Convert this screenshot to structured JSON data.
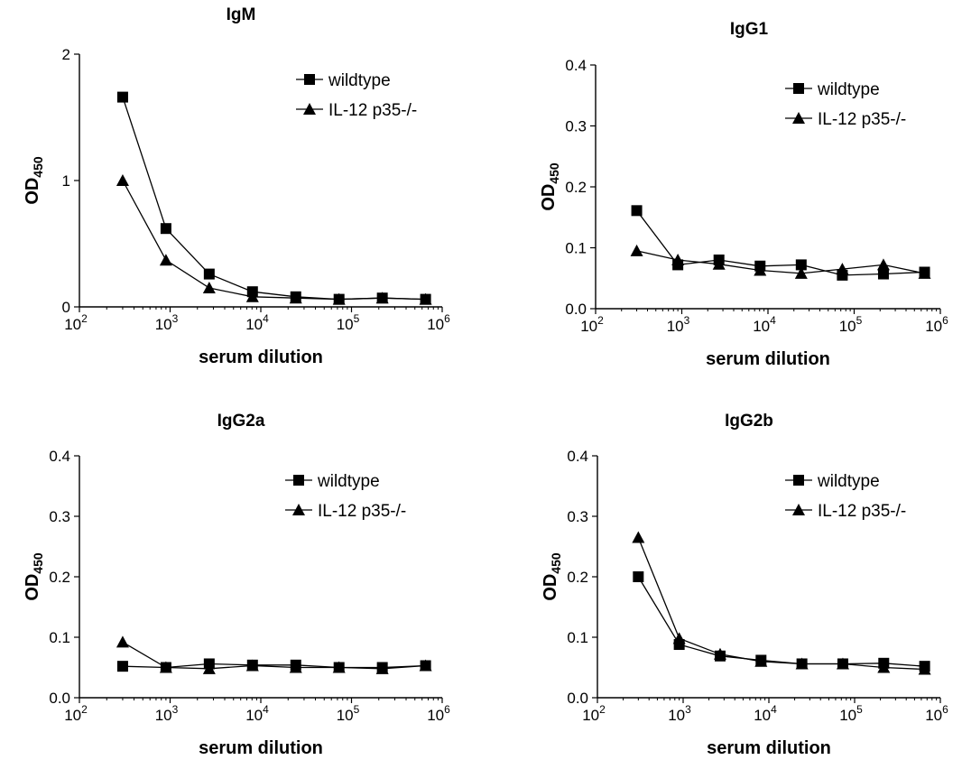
{
  "chart_data": [
    {
      "type": "line",
      "title": "IgM",
      "xlabel": "serum dilution",
      "ylabel": "OD",
      "ylabel_sub": "450",
      "xscale": "log",
      "xlim": [
        100,
        1000000
      ],
      "ylim": [
        0,
        2
      ],
      "yticks": [
        "0",
        "1",
        "2"
      ],
      "ytick_values": [
        0,
        1,
        2
      ],
      "xticks": [
        {
          "base": "10",
          "exp": "2"
        },
        {
          "base": "10",
          "exp": "3"
        },
        {
          "base": "10",
          "exp": "4"
        },
        {
          "base": "10",
          "exp": "5"
        },
        {
          "base": "10",
          "exp": "6"
        }
      ],
      "xtick_values": [
        100,
        1000,
        10000,
        100000,
        1000000
      ],
      "x": [
        300,
        900,
        2700,
        8100,
        24300,
        72900,
        218700,
        656100
      ],
      "legend_position": "top-right",
      "series": [
        {
          "name": "wildtype",
          "marker": "square",
          "values": [
            1.66,
            0.62,
            0.26,
            0.12,
            0.08,
            0.06,
            0.07,
            0.06
          ]
        },
        {
          "name": "IL-12 p35-/-",
          "marker": "triangle",
          "values": [
            1.0,
            0.37,
            0.15,
            0.08,
            0.07,
            0.06,
            0.07,
            0.06
          ]
        }
      ]
    },
    {
      "type": "line",
      "title": "IgG1",
      "xlabel": "serum dilution",
      "ylabel": "OD",
      "ylabel_sub": "450",
      "xscale": "log",
      "xlim": [
        100,
        1000000
      ],
      "ylim": [
        0,
        0.4
      ],
      "yticks": [
        "0.0",
        "0.1",
        "0.2",
        "0.3",
        "0.4"
      ],
      "ytick_values": [
        0,
        0.1,
        0.2,
        0.3,
        0.4
      ],
      "xticks": [
        {
          "base": "10",
          "exp": "2"
        },
        {
          "base": "10",
          "exp": "3"
        },
        {
          "base": "10",
          "exp": "4"
        },
        {
          "base": "10",
          "exp": "5"
        },
        {
          "base": "10",
          "exp": "6"
        }
      ],
      "xtick_values": [
        100,
        1000,
        10000,
        100000,
        1000000
      ],
      "x": [
        300,
        900,
        2700,
        8100,
        24300,
        72900,
        218700,
        656100
      ],
      "legend_position": "top-right",
      "series": [
        {
          "name": "wildtype",
          "marker": "square",
          "values": [
            0.161,
            0.072,
            0.08,
            0.07,
            0.072,
            0.055,
            0.057,
            0.06
          ]
        },
        {
          "name": "IL-12 p35-/-",
          "marker": "triangle",
          "values": [
            0.095,
            0.08,
            0.073,
            0.063,
            0.058,
            0.065,
            0.072,
            0.058
          ]
        }
      ]
    },
    {
      "type": "line",
      "title": "IgG2a",
      "xlabel": "serum dilution",
      "ylabel": "OD",
      "ylabel_sub": "450",
      "xscale": "log",
      "xlim": [
        100,
        1000000
      ],
      "ylim": [
        0,
        0.4
      ],
      "yticks": [
        "0.0",
        "0.1",
        "0.2",
        "0.3",
        "0.4"
      ],
      "ytick_values": [
        0,
        0.1,
        0.2,
        0.3,
        0.4
      ],
      "xticks": [
        {
          "base": "10",
          "exp": "2"
        },
        {
          "base": "10",
          "exp": "3"
        },
        {
          "base": "10",
          "exp": "4"
        },
        {
          "base": "10",
          "exp": "5"
        },
        {
          "base": "10",
          "exp": "6"
        }
      ],
      "xtick_values": [
        100,
        1000,
        10000,
        100000,
        1000000
      ],
      "x": [
        300,
        900,
        2700,
        8100,
        24300,
        72900,
        218700,
        656100
      ],
      "legend_position": "top-right",
      "series": [
        {
          "name": "wildtype",
          "marker": "square",
          "values": [
            0.052,
            0.05,
            0.056,
            0.054,
            0.054,
            0.05,
            0.05,
            0.053
          ]
        },
        {
          "name": "IL-12 p35-/-",
          "marker": "triangle",
          "values": [
            0.092,
            0.05,
            0.048,
            0.053,
            0.05,
            0.05,
            0.048,
            0.053
          ]
        }
      ]
    },
    {
      "type": "line",
      "title": "IgG2b",
      "xlabel": "serum dilution",
      "ylabel": "OD",
      "ylabel_sub": "450",
      "xscale": "log",
      "xlim": [
        100,
        1000000
      ],
      "ylim": [
        0,
        0.4
      ],
      "yticks": [
        "0.0",
        "0.1",
        "0.2",
        "0.3",
        "0.4"
      ],
      "ytick_values": [
        0,
        0.1,
        0.2,
        0.3,
        0.4
      ],
      "xticks": [
        {
          "base": "10",
          "exp": "2"
        },
        {
          "base": "10",
          "exp": "3"
        },
        {
          "base": "10",
          "exp": "4"
        },
        {
          "base": "10",
          "exp": "5"
        },
        {
          "base": "10",
          "exp": "6"
        }
      ],
      "xtick_values": [
        100,
        1000,
        10000,
        100000,
        1000000
      ],
      "x": [
        300,
        900,
        2700,
        8100,
        24300,
        72900,
        218700,
        656100
      ],
      "legend_position": "top-right",
      "series": [
        {
          "name": "wildtype",
          "marker": "square",
          "values": [
            0.2,
            0.088,
            0.069,
            0.062,
            0.056,
            0.056,
            0.057,
            0.052
          ]
        },
        {
          "name": "IL-12 p35-/-",
          "marker": "triangle",
          "values": [
            0.265,
            0.098,
            0.072,
            0.06,
            0.056,
            0.056,
            0.05,
            0.047
          ]
        }
      ]
    }
  ]
}
